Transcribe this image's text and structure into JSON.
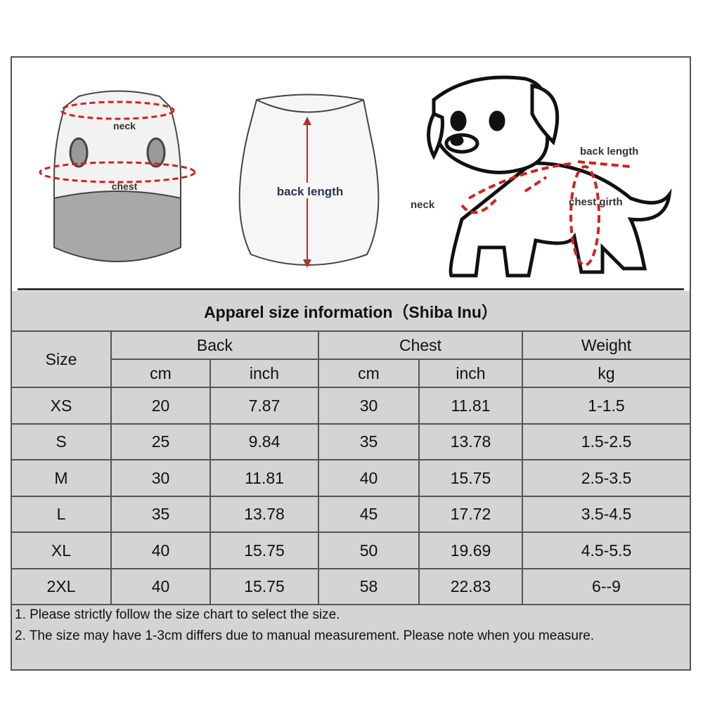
{
  "illustrations": {
    "front_vest": {
      "neck_label": "neck",
      "chest_label": "chest"
    },
    "back_vest": {
      "back_length_label": "back length"
    },
    "dog": {
      "back_length_label": "back length",
      "neck_label": "neck",
      "chest_girth_label": "chest girth"
    },
    "accent_color": "#d42020"
  },
  "table": {
    "title": "Apparel  size  information（Shiba Inu）",
    "headers": {
      "size": "Size",
      "back": "Back",
      "chest": "Chest",
      "weight": "Weight",
      "units": [
        "cm",
        "inch",
        "cm",
        "inch",
        "kg"
      ]
    },
    "rows": [
      [
        "XS",
        "20",
        "7.87",
        "30",
        "11.81",
        "1-1.5"
      ],
      [
        "S",
        "25",
        "9.84",
        "35",
        "13.78",
        "1.5-2.5"
      ],
      [
        "M",
        "30",
        "11.81",
        "40",
        "15.75",
        "2.5-3.5"
      ],
      [
        "L",
        "35",
        "13.78",
        "45",
        "17.72",
        "3.5-4.5"
      ],
      [
        "XL",
        "40",
        "15.75",
        "50",
        "19.69",
        "4.5-5.5"
      ],
      [
        "2XL",
        "40",
        "15.75",
        "58",
        "22.83",
        "6--9"
      ]
    ],
    "background_color": "#d4d4d4"
  },
  "notes": [
    "1. Please strictly follow the size chart  to select the size.",
    "2. The size may have 1-3cm differs due to manual measurement. Please note when you measure."
  ]
}
